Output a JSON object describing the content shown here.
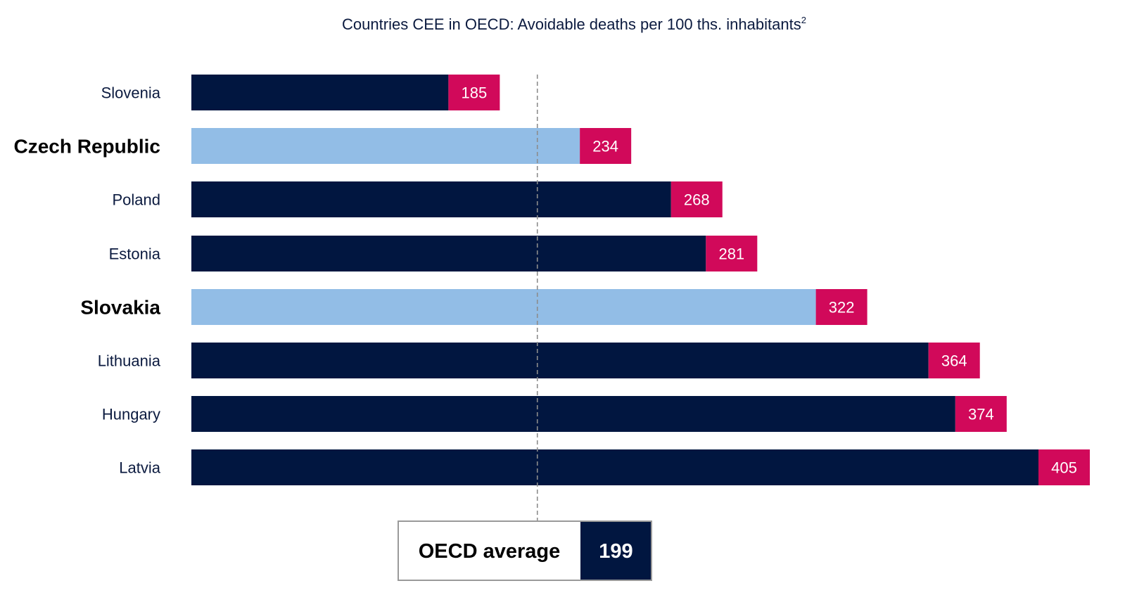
{
  "chart_data": {
    "type": "bar",
    "orientation": "horizontal",
    "title": "Countries CEE in OECD: Avoidable deaths per 100 ths. inhabitants",
    "title_superscript": "2",
    "categories": [
      "Slovenia",
      "Czech Republic",
      "Poland",
      "Estonia",
      "Slovakia",
      "Lithuania",
      "Hungary",
      "Latvia"
    ],
    "values": [
      185,
      234,
      268,
      281,
      322,
      364,
      374,
      405
    ],
    "highlighted": [
      "Czech Republic",
      "Slovakia"
    ],
    "reference_line": {
      "label": "OECD average",
      "value": 199
    },
    "xlim": [
      70,
      405
    ],
    "grid": false,
    "legend": "none",
    "colors": {
      "bar": "#011640",
      "bar_highlight": "#92bde6",
      "value_box": "#d1095a",
      "reference_line": "#8c8c8c",
      "reference_box_border": "#9a9a9a",
      "reference_value_box": "#011640",
      "title_text": "#0b1a3f",
      "label_text": "#0b1a3f"
    }
  }
}
